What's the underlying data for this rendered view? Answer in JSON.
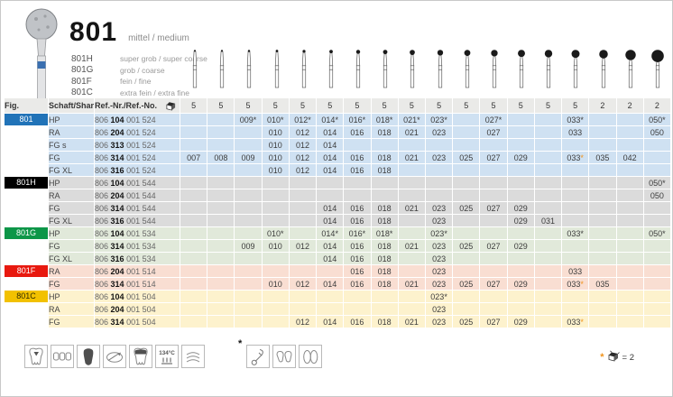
{
  "header": {
    "title": "801",
    "title_grade": "mittel / medium",
    "variants": [
      {
        "name": "801H",
        "grade": "super grob / super coarse"
      },
      {
        "name": "801G",
        "grade": "grob / coarse"
      },
      {
        "name": "801F",
        "grade": "fein / fine"
      },
      {
        "name": "801C",
        "grade": "extra fein / extra fine"
      }
    ]
  },
  "table": {
    "col_headers": {
      "fig": "Fig.",
      "shank": "Schaft/Shank",
      "ref": "Ref.-Nr./Ref.-No."
    },
    "sizes": [
      "007",
      "008",
      "009",
      "010",
      "012",
      "014",
      "016",
      "018",
      "021",
      "023",
      "025",
      "027",
      "029",
      "031",
      "033",
      "035",
      "042",
      "050"
    ],
    "pack_qty": [
      "5",
      "5",
      "5",
      "5",
      "5",
      "5",
      "5",
      "5",
      "5",
      "5",
      "5",
      "5",
      "5",
      "5",
      "5",
      "2",
      "2",
      "2"
    ],
    "blocks": [
      {
        "label": "801",
        "label_bg": "#2173b8",
        "label_fg": "#ffffff",
        "row_bg": "#cfe1f2",
        "rows": [
          {
            "shank": "HP",
            "ref": [
              "806",
              "104",
              "001 524"
            ],
            "cells": {
              "009": "b",
              "010": "b",
              "012": "b",
              "014": "b",
              "016": "b",
              "018": "b",
              "021": "b",
              "023": "b",
              "027": "b",
              "033": "b",
              "050": "b"
            }
          },
          {
            "shank": "RA",
            "ref": [
              "806",
              "204",
              "001 524"
            ],
            "cells": {
              "010": "p",
              "012": "p",
              "014": "p",
              "016": "p",
              "018": "p",
              "021": "p",
              "023": "p",
              "027": "p",
              "033": "p",
              "050": "p"
            }
          },
          {
            "shank": "FG s",
            "ref": [
              "806",
              "313",
              "001 524"
            ],
            "cells": {
              "010": "p",
              "012": "p",
              "014": "p"
            }
          },
          {
            "shank": "FG",
            "ref": [
              "806",
              "314",
              "001 524"
            ],
            "cells": {
              "007": "p",
              "008": "p",
              "009": "p",
              "010": "p",
              "012": "p",
              "014": "p",
              "016": "p",
              "018": "p",
              "021": "p",
              "023": "p",
              "025": "p",
              "027": "p",
              "029": "p",
              "033": "o",
              "035": "p",
              "042": "p"
            }
          },
          {
            "shank": "FG XL",
            "ref": [
              "806",
              "316",
              "001 524"
            ],
            "cells": {
              "010": "p",
              "012": "p",
              "014": "p",
              "016": "p",
              "018": "p"
            }
          }
        ]
      },
      {
        "label": "801H",
        "label_bg": "#000000",
        "label_fg": "#ffffff",
        "row_bg": "#dbdbdb",
        "rows": [
          {
            "shank": "HP",
            "ref": [
              "806",
              "104",
              "001 544"
            ],
            "cells": {
              "050": "b"
            }
          },
          {
            "shank": "RA",
            "ref": [
              "806",
              "204",
              "001 544"
            ],
            "cells": {
              "050": "p"
            }
          },
          {
            "shank": "FG",
            "ref": [
              "806",
              "314",
              "001 544"
            ],
            "cells": {
              "014": "p",
              "016": "p",
              "018": "p",
              "021": "p",
              "023": "p",
              "025": "p",
              "027": "p",
              "029": "p"
            }
          },
          {
            "shank": "FG XL",
            "ref": [
              "806",
              "316",
              "001 544"
            ],
            "cells": {
              "014": "p",
              "016": "p",
              "018": "p",
              "023": "p",
              "029": "p",
              "031": "p"
            }
          }
        ]
      },
      {
        "label": "801G",
        "label_bg": "#0d9648",
        "label_fg": "#ffffff",
        "row_bg": "#e1e9da",
        "rows": [
          {
            "shank": "HP",
            "ref": [
              "806",
              "104",
              "001 534"
            ],
            "cells": {
              "010": "b",
              "014": "b",
              "016": "b",
              "018": "b",
              "023": "b",
              "033": "b",
              "050": "b"
            }
          },
          {
            "shank": "FG",
            "ref": [
              "806",
              "314",
              "001 534"
            ],
            "cells": {
              "009": "p",
              "010": "p",
              "012": "p",
              "014": "p",
              "016": "p",
              "018": "p",
              "021": "p",
              "023": "p",
              "025": "p",
              "027": "p",
              "029": "p"
            }
          },
          {
            "shank": "FG XL",
            "ref": [
              "806",
              "316",
              "001 534"
            ],
            "cells": {
              "014": "p",
              "016": "p",
              "018": "p",
              "023": "p"
            }
          }
        ]
      },
      {
        "label": "801F",
        "label_bg": "#e8190f",
        "label_fg": "#ffffff",
        "row_bg": "#f9ded2",
        "rows": [
          {
            "shank": "RA",
            "ref": [
              "806",
              "204",
              "001 514"
            ],
            "cells": {
              "016": "p",
              "018": "p",
              "023": "p",
              "033": "p"
            }
          },
          {
            "shank": "FG",
            "ref": [
              "806",
              "314",
              "001 514"
            ],
            "cells": {
              "010": "p",
              "012": "p",
              "014": "p",
              "016": "p",
              "018": "p",
              "021": "p",
              "023": "p",
              "025": "p",
              "027": "p",
              "029": "p",
              "033": "o",
              "035": "p"
            }
          }
        ]
      },
      {
        "label": "801C",
        "label_bg": "#f2c100",
        "label_fg": "#332c00",
        "row_bg": "#fdf2cd",
        "rows": [
          {
            "shank": "HP",
            "ref": [
              "806",
              "104",
              "001 504"
            ],
            "cells": {
              "023": "b"
            }
          },
          {
            "shank": "RA",
            "ref": [
              "806",
              "204",
              "001 504"
            ],
            "cells": {
              "023": "p"
            }
          },
          {
            "shank": "FG",
            "ref": [
              "806",
              "314",
              "001 504"
            ],
            "cells": {
              "012": "p",
              "014": "p",
              "016": "p",
              "018": "p",
              "021": "p",
              "023": "p",
              "025": "p",
              "027": "p",
              "029": "p",
              "033": "o"
            }
          }
        ]
      }
    ]
  },
  "footer": {
    "application_icons": [
      "cavity-preparation-icon",
      "bridge-icon",
      "crown-icon",
      "inlay-icon",
      "onlay-icon",
      "sterilizable-134c-icon",
      "cleaning-icon"
    ],
    "sterilize_label": "134°C",
    "footnote_star": "*",
    "footnote_icons": [
      "scaler-icon",
      "crown-removal-icon",
      "veneers-icon"
    ],
    "legend": {
      "star": "*",
      "text": "= 2"
    }
  },
  "colors": {
    "accent_orange": "#f0941e",
    "brand_blue": "#2173b8"
  }
}
